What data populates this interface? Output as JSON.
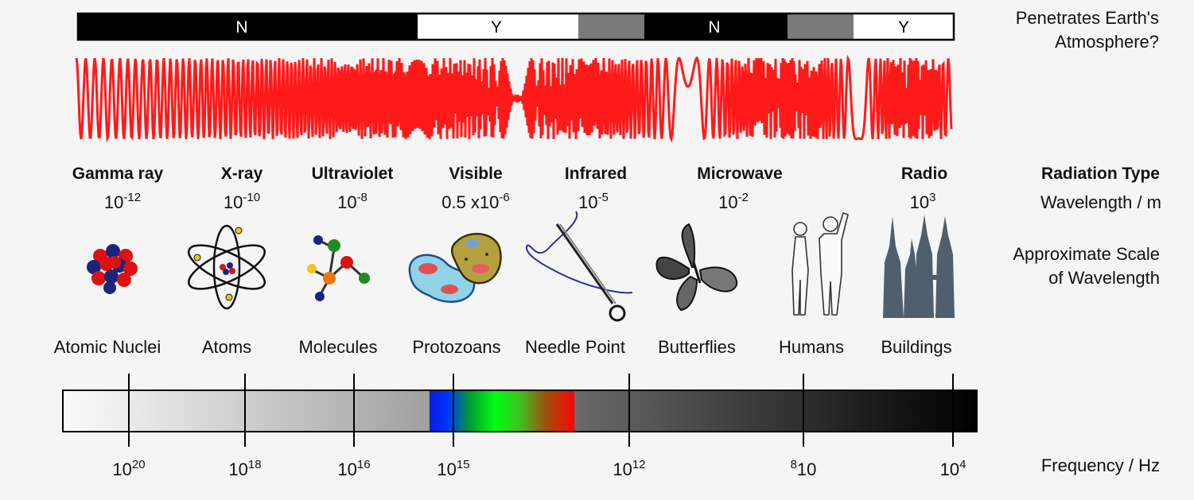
{
  "atmosphere": {
    "label_line1": "Penetrates Earth's",
    "label_line2": "Atmosphere?",
    "segments": [
      {
        "text": "N",
        "color": "#000000",
        "text_color": "#ffffff"
      },
      {
        "text": "Y",
        "color": "#ffffff",
        "text_color": "#000000"
      },
      {
        "text": "",
        "color": "#7a7a7a",
        "text_color": "#000000"
      },
      {
        "text": "N",
        "color": "#000000",
        "text_color": "#ffffff"
      },
      {
        "text": "",
        "color": "#7a7a7a",
        "text_color": "#000000"
      },
      {
        "text": "Y",
        "color": "#ffffff",
        "text_color": "#000000"
      }
    ]
  },
  "wave": {
    "color": "#ff1a1a"
  },
  "row_labels": {
    "radiation_type": "Radiation Type",
    "wavelength": "Wavelength / m",
    "scale_line1": "Approximate Scale",
    "scale_line2": "of Wavelength",
    "frequency": "Frequency / Hz"
  },
  "radiation_types": [
    {
      "name": "Gamma ray",
      "wl_prefix": "10",
      "wl_exp": "-12"
    },
    {
      "name": "X-ray",
      "wl_prefix": "10",
      "wl_exp": "-10"
    },
    {
      "name": "Ultraviolet",
      "wl_prefix": "10",
      "wl_exp": "-8"
    },
    {
      "name": "Visible",
      "wl_prefix": "0.5 x10",
      "wl_exp": "-6"
    },
    {
      "name": "Infrared",
      "wl_prefix": "10",
      "wl_exp": "-5"
    },
    {
      "name": "Microwave",
      "wl_prefix": "10",
      "wl_exp": "-2"
    },
    {
      "name": "Radio",
      "wl_prefix": "10",
      "wl_exp": "3"
    }
  ],
  "scale_objects": [
    {
      "label": "Atomic Nuclei",
      "icon": "atomic-nucleus-icon"
    },
    {
      "label": "Atoms",
      "icon": "atom-icon"
    },
    {
      "label": "Molecules",
      "icon": "molecule-icon"
    },
    {
      "label": "Protozoans",
      "icon": "protozoan-icon"
    },
    {
      "label": "Needle Point",
      "icon": "needle-icon"
    },
    {
      "label": "Butterflies",
      "icon": "butterfly-icon"
    },
    {
      "label": "Humans",
      "icon": "humans-icon"
    },
    {
      "label": "Buildings",
      "icon": "buildings-icon"
    }
  ],
  "frequency_ticks": [
    {
      "base": "10",
      "exp": "20",
      "exp_first": false
    },
    {
      "base": "10",
      "exp": "18",
      "exp_first": false
    },
    {
      "base": "10",
      "exp": "16",
      "exp_first": false
    },
    {
      "base": "10",
      "exp": "15",
      "exp_first": false
    },
    {
      "base": "10",
      "exp": "12",
      "exp_first": false
    },
    {
      "base": "10",
      "exp": "8",
      "exp_first": true
    },
    {
      "base": "10",
      "exp": "4",
      "exp_first": false
    }
  ]
}
